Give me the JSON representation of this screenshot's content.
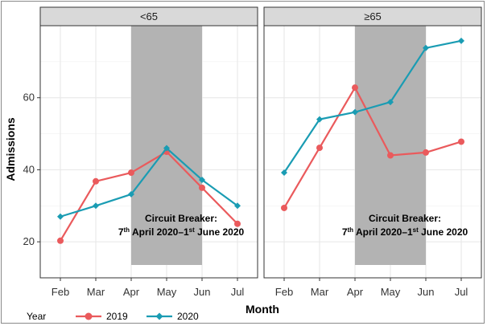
{
  "chart_data": {
    "type": "line",
    "xlabel": "Month",
    "ylabel": "Admissions",
    "categories": [
      "Feb",
      "Mar",
      "Apr",
      "May",
      "Jun",
      "Jul"
    ],
    "ylim": [
      10,
      80
    ],
    "yticks": [
      20,
      40,
      60
    ],
    "grid": true,
    "legend": {
      "title": "Year",
      "placement": "bottom-left",
      "entries": [
        {
          "name": "2019",
          "color": "#ea5a5c",
          "marker": "circle"
        },
        {
          "name": "2020",
          "color": "#1a9cb3",
          "marker": "diamond"
        }
      ]
    },
    "shaded_period": {
      "start": "Apr",
      "end": "Jun",
      "color": "#b3b3b3"
    },
    "annotation": {
      "line1": "Circuit Breaker:",
      "line2_a": "7",
      "line2_sup1": "th",
      "line2_b": " April 2020–1",
      "line2_sup2": "st",
      "line2_c": " June 2020"
    },
    "panels": [
      {
        "title": "<65",
        "series": [
          {
            "name": "2019",
            "values": [
              20.3,
              36.8,
              39.2,
              45.0,
              35.0,
              25.0
            ]
          },
          {
            "name": "2020",
            "values": [
              27.0,
              30.0,
              33.2,
              46.0,
              37.2,
              30.0
            ]
          }
        ]
      },
      {
        "title": "≥65",
        "series": [
          {
            "name": "2019",
            "values": [
              29.4,
              46.1,
              62.8,
              44.0,
              44.8,
              47.8
            ]
          },
          {
            "name": "2020",
            "values": [
              39.2,
              54.0,
              56.0,
              58.8,
              73.8,
              75.8
            ]
          }
        ]
      }
    ]
  }
}
